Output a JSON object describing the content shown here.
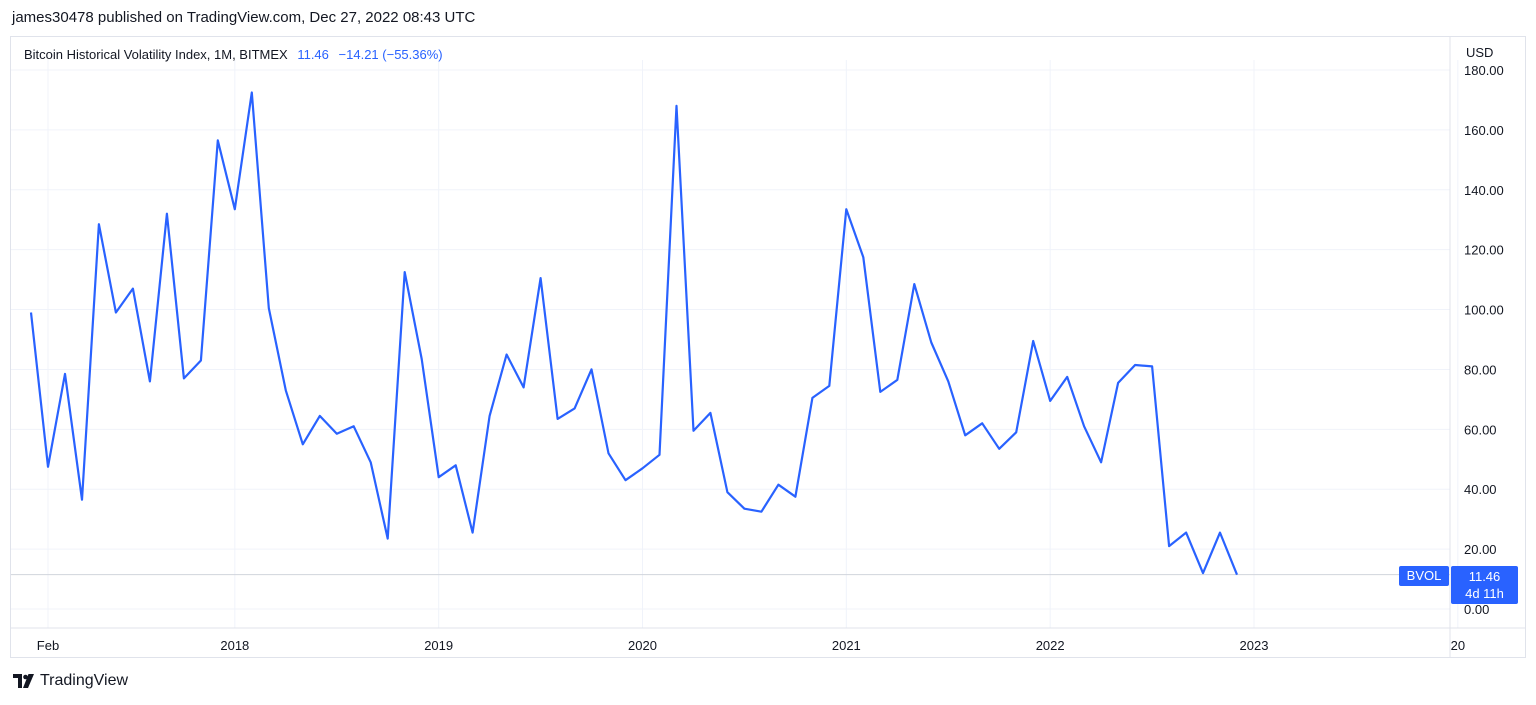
{
  "header": {
    "publish_line": "james30478 published on TradingView.com, Dec 27, 2022 08:43 UTC"
  },
  "legend": {
    "symbol": "Bitcoin Historical Volatility Index, 1M, BITMEX",
    "last_value": "11.46",
    "change": "−14.21 (−55.36%)"
  },
  "axis": {
    "currency": "USD"
  },
  "price_label": {
    "ticker": "BVOL",
    "value": "11.46",
    "countdown": "4d 11h"
  },
  "footer": {
    "brand": "TradingView"
  },
  "colors": {
    "line": "#2962ff",
    "grid": "#f0f3fa",
    "text": "#131722"
  },
  "chart_data": {
    "type": "line",
    "title": "Bitcoin Historical Volatility Index, 1M, BITMEX",
    "ylabel": "USD",
    "ylim": [
      0,
      180
    ],
    "yticks": [
      0,
      20,
      40,
      60,
      80,
      100,
      120,
      140,
      160,
      180
    ],
    "ytick_labels": [
      "0.00",
      "20.00",
      "40.00",
      "60.00",
      "80.00",
      "100.00",
      "120.00",
      "140.00",
      "160.00",
      "180.00"
    ],
    "xtick_labels": [
      "Feb",
      "2018",
      "2019",
      "2020",
      "2021",
      "2022",
      "2023",
      "20"
    ],
    "xtick_dates": [
      "2017-02",
      "2018-01",
      "2019-01",
      "2020-01",
      "2021-01",
      "2022-01",
      "2023-01",
      "2024-01"
    ],
    "grid": true,
    "series": [
      {
        "name": "BVOL",
        "dates": [
          "2017-01",
          "2017-02",
          "2017-03",
          "2017-04",
          "2017-05",
          "2017-06",
          "2017-07",
          "2017-08",
          "2017-09",
          "2017-10",
          "2017-11",
          "2017-12",
          "2018-01",
          "2018-02",
          "2018-03",
          "2018-04",
          "2018-05",
          "2018-06",
          "2018-07",
          "2018-08",
          "2018-09",
          "2018-10",
          "2018-11",
          "2018-12",
          "2019-01",
          "2019-02",
          "2019-03",
          "2019-04",
          "2019-05",
          "2019-06",
          "2019-07",
          "2019-08",
          "2019-09",
          "2019-10",
          "2019-11",
          "2019-12",
          "2020-01",
          "2020-02",
          "2020-03",
          "2020-04",
          "2020-05",
          "2020-06",
          "2020-07",
          "2020-08",
          "2020-09",
          "2020-10",
          "2020-11",
          "2020-12",
          "2021-01",
          "2021-02",
          "2021-03",
          "2021-04",
          "2021-05",
          "2021-06",
          "2021-07",
          "2021-08",
          "2021-09",
          "2021-10",
          "2021-11",
          "2021-12",
          "2022-01",
          "2022-02",
          "2022-03",
          "2022-04",
          "2022-05",
          "2022-06",
          "2022-07",
          "2022-08",
          "2022-09",
          "2022-10",
          "2022-11",
          "2022-12"
        ],
        "values": [
          99.0,
          47.5,
          78.5,
          36.5,
          128.5,
          99.0,
          107.0,
          76.0,
          132.0,
          77.0,
          83.0,
          156.5,
          133.5,
          172.5,
          100.5,
          73.0,
          55.0,
          64.5,
          58.5,
          61.0,
          49.0,
          23.5,
          112.5,
          83.5,
          44.0,
          48.0,
          25.5,
          64.5,
          85.0,
          74.0,
          110.5,
          63.5,
          67.0,
          80.0,
          52.0,
          43.0,
          47.0,
          51.5,
          168.0,
          59.5,
          65.5,
          39.0,
          33.5,
          32.5,
          41.5,
          37.5,
          70.5,
          74.5,
          133.5,
          117.5,
          72.5,
          76.5,
          108.5,
          89.0,
          76.0,
          58.0,
          62.0,
          53.5,
          59.0,
          89.5,
          69.5,
          77.5,
          61.0,
          49.0,
          75.5,
          81.5,
          81.0,
          21.0,
          25.5,
          12.0,
          25.5,
          11.46
        ]
      }
    ]
  }
}
